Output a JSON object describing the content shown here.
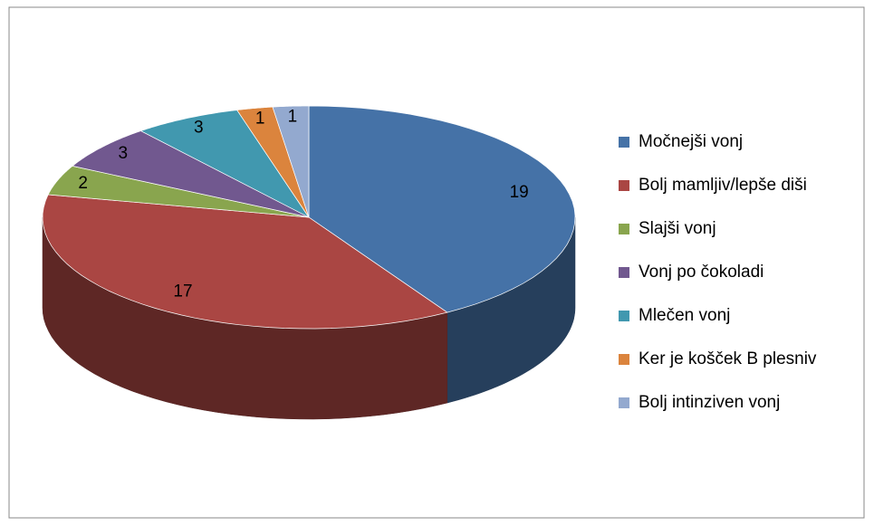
{
  "chart_data": {
    "type": "pie",
    "three_d": true,
    "legend": "right",
    "categories": [
      "Močnejši vonj",
      "Bolj mamljiv/lepše diši",
      "Slajši vonj",
      "Vonj po čokoladi",
      "Mlečen vonj",
      "Ker je košček B plesniv",
      "Bolj intinziven vonj"
    ],
    "values": [
      19,
      17,
      2,
      3,
      3,
      1,
      1
    ],
    "colors": [
      "#4572a7",
      "#aa4643",
      "#89a54e",
      "#71588f",
      "#4198af",
      "#db843d",
      "#93a9cf"
    ]
  }
}
